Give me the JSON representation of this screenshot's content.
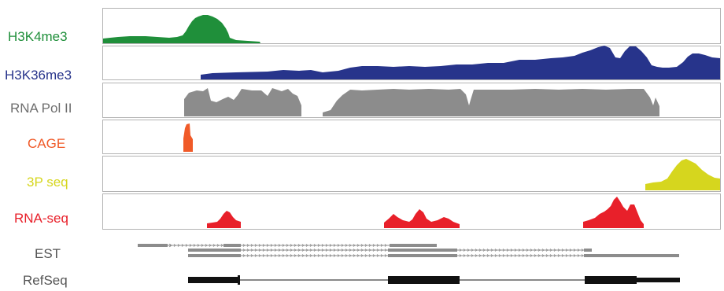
{
  "tracks": [
    {
      "label": "H3K4me3",
      "color": "#1f8f3a"
    },
    {
      "label": "H3K36me3",
      "color": "#27348b"
    },
    {
      "label": "RNA Pol II",
      "color": "#808080"
    },
    {
      "label": "CAGE",
      "color": "#f05a28"
    },
    {
      "label": "3P seq",
      "color": "#d6d61e"
    },
    {
      "label": "RNA-seq",
      "color": "#e8202a"
    }
  ],
  "annotations": [
    {
      "label": "EST",
      "color": "#555555"
    },
    {
      "label": "RefSeq",
      "color": "#555555"
    }
  ],
  "colors": {
    "frame": "#b3b3b3",
    "est": "#8c8c8c",
    "refseq": "#111111",
    "label_gray": "#555555"
  }
}
